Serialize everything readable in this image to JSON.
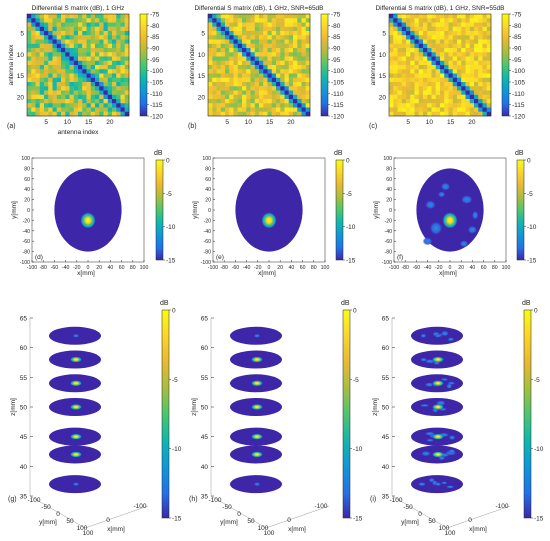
{
  "colors": {
    "low": "#3e26a8",
    "high": "#f9fb15",
    "axis": "#262626"
  },
  "colorbar_ticks": {
    "matrix": [
      "-75",
      "-80",
      "-85",
      "-90",
      "-95",
      "-100",
      "-105",
      "-110",
      "-115",
      "-120"
    ],
    "image": [
      "0",
      "-5",
      "-10",
      "-15"
    ]
  },
  "db_label": "dB",
  "chart_data": [
    {
      "type": "heatmap",
      "label": "(a)",
      "title": "Differential S matrix (dB), 1 GHz",
      "xlabel": "antenna index",
      "ylabel": "antenna index",
      "xticks": [
        "5",
        "10",
        "15",
        "20"
      ],
      "yticks": [
        "5",
        "10",
        "15",
        "20"
      ],
      "size": 24,
      "clim": [
        -120,
        -75
      ],
      "diagonal_value": -120
    },
    {
      "type": "heatmap",
      "label": "(b)",
      "title": "Differential S matrix (dB), 1 GHz, SNR=65dB",
      "xlabel": "",
      "ylabel": "antenna index",
      "xticks": [
        "5",
        "10",
        "15",
        "20"
      ],
      "yticks": [
        "5",
        "10",
        "15",
        "20"
      ],
      "size": 24,
      "clim": [
        -120,
        -75
      ],
      "diagonal_value": -120
    },
    {
      "type": "heatmap",
      "label": "(c)",
      "title": "Differential S matrix (dB), 1 GHz, SNR=55dB",
      "xlabel": "",
      "ylabel": "antenna index",
      "xticks": [
        "5",
        "10",
        "15",
        "20"
      ],
      "yticks": [
        "5",
        "10",
        "15",
        "20"
      ],
      "size": 24,
      "clim": [
        -120,
        -75
      ],
      "diagonal_value": -120
    },
    {
      "type": "heatmap",
      "label": "(d)",
      "xlabel": "x[mm]",
      "ylabel": "y[mm]",
      "xticks": [
        "-100",
        "-80",
        "-60",
        "-40",
        "-20",
        "0",
        "20",
        "40",
        "60",
        "80",
        "100"
      ],
      "yticks": [
        "100",
        "80",
        "60",
        "40",
        "20",
        "0",
        "-20",
        "-40",
        "-60",
        "-80",
        "-100"
      ],
      "xlim": [
        -100,
        100
      ],
      "ylim": [
        -100,
        100
      ],
      "clim": [
        -15,
        0
      ],
      "head": {
        "rx": 60,
        "ry": 80
      },
      "peaks": [
        {
          "x": 0,
          "y": -20,
          "value": 0
        }
      ]
    },
    {
      "type": "heatmap",
      "label": "(e)",
      "xlabel": "x[mm]",
      "ylabel": "y[mm]",
      "xticks": [
        "-100",
        "-80",
        "-60",
        "-40",
        "-20",
        "0",
        "20",
        "40",
        "60",
        "80",
        "100"
      ],
      "yticks": [
        "100",
        "80",
        "60",
        "40",
        "20",
        "0",
        "-20",
        "-40",
        "-60",
        "-80",
        "-100"
      ],
      "xlim": [
        -100,
        100
      ],
      "ylim": [
        -100,
        100
      ],
      "clim": [
        -15,
        0
      ],
      "head": {
        "rx": 60,
        "ry": 80
      },
      "peaks": [
        {
          "x": 0,
          "y": -20,
          "value": 0
        }
      ]
    },
    {
      "type": "heatmap",
      "label": "(f)",
      "xlabel": "x[mm]",
      "ylabel": "y[mm]",
      "xticks": [
        "-100",
        "-80",
        "-60",
        "-40",
        "-20",
        "0",
        "20",
        "40",
        "60",
        "80",
        "100"
      ],
      "yticks": [
        "100",
        "80",
        "60",
        "40",
        "20",
        "0",
        "-20",
        "-40",
        "-60",
        "-80",
        "-100"
      ],
      "xlim": [
        -100,
        100
      ],
      "ylim": [
        -100,
        100
      ],
      "clim": [
        -15,
        0
      ],
      "head": {
        "rx": 60,
        "ry": 80
      },
      "peaks": [
        {
          "x": 0,
          "y": -20,
          "value": 0
        }
      ]
    },
    {
      "type": "heatmap",
      "label": "(g)",
      "xlabel": "x[mm]",
      "ylabel": "y[mm]",
      "zlabel": "z[mm]",
      "zticks": [
        "35",
        "40",
        "45",
        "50",
        "55",
        "60",
        "65"
      ],
      "zlim": [
        35,
        65
      ],
      "xticks": [
        "-100",
        "0",
        "100"
      ],
      "yticks": [
        "-100",
        "-50",
        "0",
        "50",
        "100"
      ],
      "slice_z": [
        37,
        42,
        45,
        50,
        54,
        58,
        62
      ],
      "clim": [
        -15,
        0
      ]
    },
    {
      "type": "heatmap",
      "label": "(h)",
      "xlabel": "x[mm]",
      "ylabel": "y[mm]",
      "zlabel": "z[mm]",
      "zticks": [
        "35",
        "40",
        "45",
        "50",
        "55",
        "60",
        "65"
      ],
      "zlim": [
        35,
        65
      ],
      "xticks": [
        "-100",
        "0",
        "100"
      ],
      "yticks": [
        "-100",
        "-50",
        "0",
        "50",
        "100"
      ],
      "slice_z": [
        37,
        42,
        45,
        50,
        54,
        58,
        62
      ],
      "clim": [
        -15,
        0
      ]
    },
    {
      "type": "heatmap",
      "label": "(i)",
      "xlabel": "x[mm]",
      "ylabel": "y[mm]",
      "zlabel": "z[mm]",
      "zticks": [
        "35",
        "40",
        "45",
        "50",
        "55",
        "60",
        "65"
      ],
      "zlim": [
        35,
        65
      ],
      "xticks": [
        "-100",
        "0",
        "100"
      ],
      "yticks": [
        "-100",
        "-50",
        "0",
        "50",
        "100"
      ],
      "slice_z": [
        37,
        42,
        45,
        50,
        54,
        58,
        62
      ],
      "clim": [
        -15,
        0
      ]
    }
  ]
}
